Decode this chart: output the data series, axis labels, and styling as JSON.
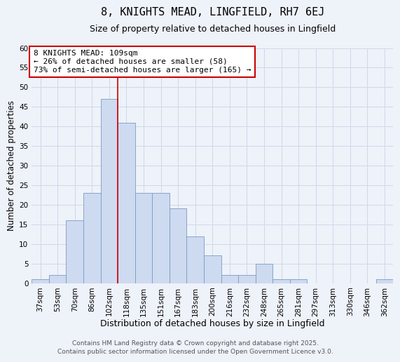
{
  "title": "8, KNIGHTS MEAD, LINGFIELD, RH7 6EJ",
  "subtitle": "Size of property relative to detached houses in Lingfield",
  "xlabel": "Distribution of detached houses by size in Lingfield",
  "ylabel": "Number of detached properties",
  "categories": [
    "37sqm",
    "53sqm",
    "70sqm",
    "86sqm",
    "102sqm",
    "118sqm",
    "135sqm",
    "151sqm",
    "167sqm",
    "183sqm",
    "200sqm",
    "216sqm",
    "232sqm",
    "248sqm",
    "265sqm",
    "281sqm",
    "297sqm",
    "313sqm",
    "330sqm",
    "346sqm",
    "362sqm"
  ],
  "values": [
    1,
    2,
    16,
    23,
    47,
    41,
    23,
    23,
    19,
    12,
    7,
    2,
    2,
    5,
    1,
    1,
    0,
    0,
    0,
    0,
    1
  ],
  "bar_color": "#cddaf0",
  "bar_edge_color": "#7a9cc4",
  "grid_color": "#d0d8e8",
  "background_color": "#eef2f9",
  "vline_color": "#cc0000",
  "annotation_text": "8 KNIGHTS MEAD: 109sqm\n← 26% of detached houses are smaller (58)\n73% of semi-detached houses are larger (165) →",
  "annotation_box_color": "#ffffff",
  "annotation_box_edge": "#cc0000",
  "footer1": "Contains HM Land Registry data © Crown copyright and database right 2025.",
  "footer2": "Contains public sector information licensed under the Open Government Licence v3.0.",
  "ylim": [
    0,
    60
  ],
  "title_fontsize": 11,
  "subtitle_fontsize": 9,
  "xlabel_fontsize": 9,
  "ylabel_fontsize": 8.5,
  "tick_fontsize": 7.5,
  "annotation_fontsize": 8,
  "footer_fontsize": 6.5
}
